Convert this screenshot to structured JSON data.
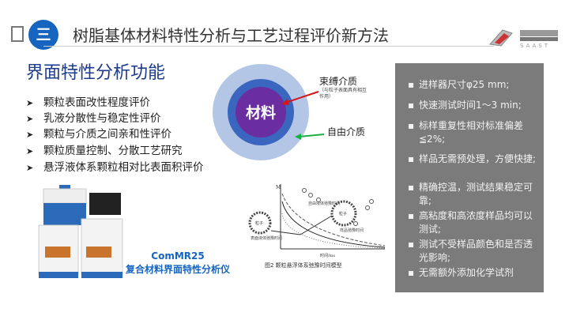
{
  "header": {
    "section_number": "三",
    "title": "树脂基体材料特性分析与工艺过程评价新方法",
    "logo_text": "SAAST"
  },
  "heading": "界面特性分析功能",
  "features": [
    "颗粒表面改性程度评价",
    "乳液分散性与稳定性评价",
    "颗粒与介质之间亲和性评价",
    "颗粒质量控制、分散工艺研究",
    "悬浮液体系颗粒相对比表面积评价"
  ],
  "diagram": {
    "core": "材料",
    "bound_label": "束缚介质",
    "bound_note": "（与粒子表面具有相互作用）",
    "free_label": "自由介质",
    "colors": {
      "core": "#6a2ea0",
      "bound": "#3a66c0",
      "free": "#b4c6e6",
      "bound_arrow": "#d01818",
      "free_arrow": "#18b040"
    }
  },
  "figure": {
    "y_axis": "M",
    "x_axis": "时间/ms",
    "particle": "粒子",
    "free_label": "自由液体弛豫时间",
    "surface_label": "表面液体弛豫时间",
    "sample_label": "样品弛豫时间",
    "caption": "图2  颗粒悬浮体系弛豫时间模型"
  },
  "product": {
    "model": "ComMR25",
    "name": "复合材料界面特性分析仪"
  },
  "specs": [
    "进样器尺寸φ25 mm;",
    "快速测试时间1～3 min;",
    "标样重复性相对标准偏差≦2%;",
    "样品无需预处理，方便快捷;",
    "精确控温，测试结果稳定可靠;",
    "高粘度和高浓度样品均可以测试;",
    "测试不受样品颜色和是否透光影响;",
    "无需额外添加化学试剂"
  ]
}
